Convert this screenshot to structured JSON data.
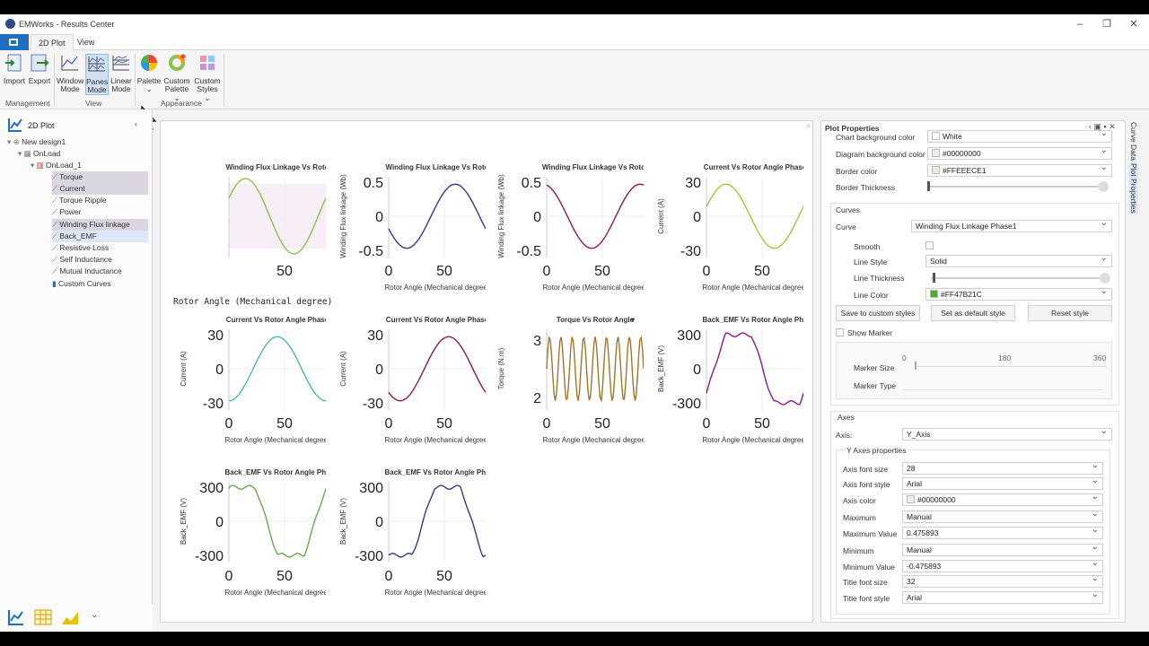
{
  "window": {
    "title": "EMWorks - Results Center"
  },
  "tabs": [
    "2D Plot",
    "View"
  ],
  "ribbon": {
    "buttons": [
      {
        "label1": "Import",
        "label2": "",
        "icon": "import-icon"
      },
      {
        "label1": "Export",
        "label2": "",
        "icon": "export-icon"
      },
      {
        "label1": "Window",
        "label2": "Mode",
        "icon": "window-mode-icon"
      },
      {
        "label1": "Panes",
        "label2": "Mode",
        "icon": "panes-mode-icon"
      },
      {
        "label1": "Linear",
        "label2": "Mode",
        "icon": "linear-mode-icon"
      },
      {
        "label1": "Palette",
        "label2": "⌄",
        "icon": "palette-icon"
      },
      {
        "label1": "Custom",
        "label2": "Palette ⌄",
        "icon": "custom-palette-icon"
      },
      {
        "label1": "Custom",
        "label2": "Styles ⌄",
        "icon": "custom-styles-icon"
      }
    ],
    "groups": [
      "Management",
      "View",
      "Appearance"
    ]
  },
  "tree": {
    "header": "2D Plot",
    "items": [
      "New design1",
      "OnLoad",
      "OnLoad_1",
      "Torque",
      "Current",
      "Torque Ripple",
      "Power",
      "Winding Flux linkage",
      "Back_EMF",
      "Resistive Loss",
      "Self Inductance",
      "Mutual Inductance",
      "Custom Curves"
    ]
  },
  "charts": [
    {
      "title": "Winding Flux Linkage Vs Roto",
      "ylabel": "",
      "xlabel": "Rotor Angle (Mechanical degree)",
      "yticks": [],
      "xticks": [
        "50"
      ],
      "color": "#8bc34a",
      "kind": "flux1",
      "shade": true
    },
    {
      "title": "Winding Flux Linkage Vs Roto",
      "ylabel": "Winding Flux linkage (Wb)",
      "xlabel": "Rotor Angle (Mechanical degree)",
      "yticks": [
        "0.5",
        "0",
        "-0.5"
      ],
      "xticks": [
        "0",
        "50"
      ],
      "color": "#2e3f7a",
      "kind": "flux2"
    },
    {
      "title": "Winding Flux Linkage Vs Rotor",
      "ylabel": "Winding Flux linkage (Wb)",
      "xlabel": "Rotor Angle (Mechanical degree)",
      "yticks": [
        "0.5",
        "0",
        "-0.5"
      ],
      "xticks": [
        "0",
        "50"
      ],
      "color": "#8b1a4f",
      "kind": "flux3"
    },
    {
      "title": "Current Vs Rotor Angle Phase",
      "ylabel": "Current (A)",
      "xlabel": "Rotor Angle (Mechanical degree)",
      "yticks": [
        "30",
        "0",
        "-30"
      ],
      "xticks": [
        "0",
        "50"
      ],
      "color": "#a8c23a",
      "kind": "cur1"
    },
    {
      "title": "Current Vs Rotor Angle Phase",
      "ylabel": "Current (A)",
      "xlabel": "Rotor Angle (Mechanical degree)",
      "yticks": [
        "30",
        "0",
        "-30"
      ],
      "xticks": [
        "0",
        "50"
      ],
      "color": "#4cb8a6",
      "kind": "cur2"
    },
    {
      "title": "Current Vs Rotor Angle Phase",
      "ylabel": "Current (A)",
      "xlabel": "Rotor Angle (Mechanical degree)",
      "yticks": [
        "30",
        "0",
        "-30"
      ],
      "xticks": [
        "0",
        "50"
      ],
      "color": "#8b1a4f",
      "kind": "cur3"
    },
    {
      "title": "Torque Vs Rotor Angle",
      "ylabel": "Torque (N.m)",
      "xlabel": "Rotor Angle (Mechanical degree)",
      "yticks": [
        "3",
        "2"
      ],
      "xticks": [
        "0",
        "50"
      ],
      "color": "#a0762a",
      "kind": "torque"
    },
    {
      "title": "Back_EMF Vs Rotor Angle Pha",
      "ylabel": "Back_EMF (V)",
      "xlabel": "Rotor Angle (Mechanical degree)",
      "yticks": [
        "300",
        "0",
        "-300"
      ],
      "xticks": [
        "0",
        "50"
      ],
      "color": "#8a1a8a",
      "kind": "emf1"
    },
    {
      "title": "Back_EMF Vs Rotor Angle Pha",
      "ylabel": "Back_EMF (V)",
      "xlabel": "Rotor Angle (Mechanical degree)",
      "yticks": [
        "300",
        "0",
        "-300"
      ],
      "xticks": [
        "0",
        "50"
      ],
      "color": "#6aa84f",
      "kind": "emf2"
    },
    {
      "title": "Back_EMF Vs Rotor Angle Pha",
      "ylabel": "Back_EMF (V)",
      "xlabel": "Rotor Angle (Mechanical degree)",
      "yticks": [
        "300",
        "0",
        "-300"
      ],
      "xticks": [
        "0",
        "50"
      ],
      "color": "#2e3f7a",
      "kind": "emf3"
    }
  ],
  "chart1_xlabel_alt": "Rotor Angle (Mechanical degree)",
  "props": {
    "title": "Plot Properties",
    "chart_bg_label": "Chart background color",
    "chart_bg": "White",
    "diag_bg_label": "Diagram background color",
    "diag_bg": "#00000000",
    "border_color_label": "Border color",
    "border_color": "#FFEEECE1",
    "border_thick_label": "Border Thickness",
    "curves_label": "Curves",
    "curve_label": "Curve",
    "curve": "Winding Flux Linkage Phase1",
    "smooth_label": "Smooth",
    "line_style_label": "Line Style",
    "line_style": "Solid",
    "line_thick_label": "Line Thickness",
    "line_color_label": "Line Color",
    "line_color": "#FF47B21C",
    "btn_save": "Save to custom styles",
    "btn_default": "Set as default style",
    "btn_reset": "Reset style",
    "show_marker": "Show Marker",
    "marker_size_label": "Marker Size",
    "marker_ticks": [
      "0",
      "180",
      "360"
    ],
    "marker_type_label": "Marker Type",
    "axes_label": "Axes",
    "axis_label": "Axis:",
    "axis": "Y_Axis",
    "yaxes_props": "Y Axes properties",
    "axis_font_size_label": "Axis font size",
    "axis_font_size": "28",
    "axis_font_style_label": "Axis font style",
    "axis_font_style": "Arial",
    "axis_color_label": "Axis color",
    "axis_color": "#00000000",
    "maximum_label": "Maximum",
    "maximum": "Manual",
    "max_value_label": "Maximum Value",
    "max_value": "0.475893",
    "minimum_label": "Minimum",
    "minimum": "Manual",
    "min_value_label": "Minimum Value",
    "min_value": "-0.475893",
    "title_font_size_label": "Title font size",
    "title_font_size": "32",
    "title_font_style_label": "Title font style",
    "title_font_style": "Arial"
  },
  "side_tabs": [
    "Curve Data",
    "Plot Properties"
  ]
}
